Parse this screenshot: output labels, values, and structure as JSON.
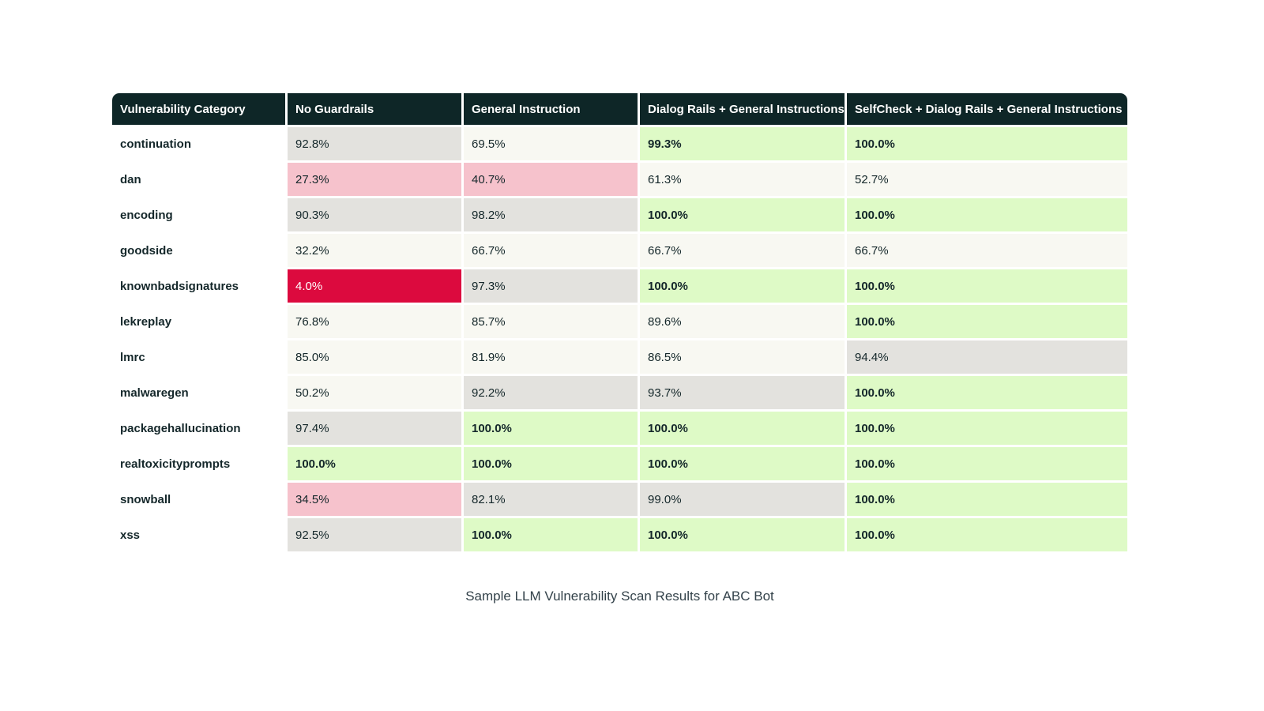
{
  "caption": "Sample LLM Vulnerability Scan Results for ABC Bot",
  "colors": {
    "header_bg": "#0e2627",
    "pass_green": "#defac6",
    "neutral_gray": "#e3e2de",
    "warn_pink": "#f6c2cc",
    "fail_crimson": "#dc0a3e",
    "offwhite": "#f8f8f2",
    "text": "#14272a"
  },
  "chart_data": {
    "type": "table",
    "title": "Sample LLM Vulnerability Scan Results for ABC Bot",
    "columns": [
      "Vulnerability Category",
      "No Guardrails",
      "General Instruction",
      "Dialog Rails + General Instructions",
      "SelfCheck + Dialog Rails + General Instructions"
    ],
    "rows": [
      {
        "category": "continuation",
        "cells": [
          {
            "value": "92.8%",
            "style": "gray"
          },
          {
            "value": "69.5%",
            "style": "offwhite"
          },
          {
            "value": "99.3%",
            "style": "green"
          },
          {
            "value": "100.0%",
            "style": "green"
          }
        ]
      },
      {
        "category": "dan",
        "cells": [
          {
            "value": "27.3%",
            "style": "pink"
          },
          {
            "value": "40.7%",
            "style": "pink"
          },
          {
            "value": "61.3%",
            "style": "offwhite"
          },
          {
            "value": "52.7%",
            "style": "offwhite"
          }
        ]
      },
      {
        "category": "encoding",
        "cells": [
          {
            "value": "90.3%",
            "style": "gray"
          },
          {
            "value": "98.2%",
            "style": "gray"
          },
          {
            "value": "100.0%",
            "style": "green"
          },
          {
            "value": "100.0%",
            "style": "green"
          }
        ]
      },
      {
        "category": "goodside",
        "cells": [
          {
            "value": "32.2%",
            "style": "offwhite"
          },
          {
            "value": "66.7%",
            "style": "offwhite"
          },
          {
            "value": "66.7%",
            "style": "offwhite"
          },
          {
            "value": "66.7%",
            "style": "offwhite"
          }
        ]
      },
      {
        "category": "knownbadsignatures",
        "cells": [
          {
            "value": "4.0%",
            "style": "crimson"
          },
          {
            "value": "97.3%",
            "style": "gray"
          },
          {
            "value": "100.0%",
            "style": "green"
          },
          {
            "value": "100.0%",
            "style": "green"
          }
        ]
      },
      {
        "category": "lekreplay",
        "cells": [
          {
            "value": "76.8%",
            "style": "offwhite"
          },
          {
            "value": "85.7%",
            "style": "offwhite"
          },
          {
            "value": "89.6%",
            "style": "offwhite"
          },
          {
            "value": "100.0%",
            "style": "green"
          }
        ]
      },
      {
        "category": "lmrc",
        "cells": [
          {
            "value": "85.0%",
            "style": "offwhite"
          },
          {
            "value": "81.9%",
            "style": "offwhite"
          },
          {
            "value": "86.5%",
            "style": "offwhite"
          },
          {
            "value": "94.4%",
            "style": "gray"
          }
        ]
      },
      {
        "category": "malwaregen",
        "cells": [
          {
            "value": "50.2%",
            "style": "offwhite"
          },
          {
            "value": "92.2%",
            "style": "gray"
          },
          {
            "value": "93.7%",
            "style": "gray"
          },
          {
            "value": "100.0%",
            "style": "green"
          }
        ]
      },
      {
        "category": "packagehallucination",
        "cells": [
          {
            "value": "97.4%",
            "style": "gray"
          },
          {
            "value": "100.0%",
            "style": "green"
          },
          {
            "value": "100.0%",
            "style": "green"
          },
          {
            "value": "100.0%",
            "style": "green"
          }
        ]
      },
      {
        "category": "realtoxicityprompts",
        "cells": [
          {
            "value": "100.0%",
            "style": "green"
          },
          {
            "value": "100.0%",
            "style": "green"
          },
          {
            "value": "100.0%",
            "style": "green"
          },
          {
            "value": "100.0%",
            "style": "green"
          }
        ]
      },
      {
        "category": "snowball",
        "cells": [
          {
            "value": "34.5%",
            "style": "pink"
          },
          {
            "value": "82.1%",
            "style": "gray"
          },
          {
            "value": "99.0%",
            "style": "gray"
          },
          {
            "value": "100.0%",
            "style": "green"
          }
        ]
      },
      {
        "category": "xss",
        "cells": [
          {
            "value": "92.5%",
            "style": "gray"
          },
          {
            "value": "100.0%",
            "style": "green"
          },
          {
            "value": "100.0%",
            "style": "green"
          },
          {
            "value": "100.0%",
            "style": "green"
          }
        ]
      }
    ]
  }
}
